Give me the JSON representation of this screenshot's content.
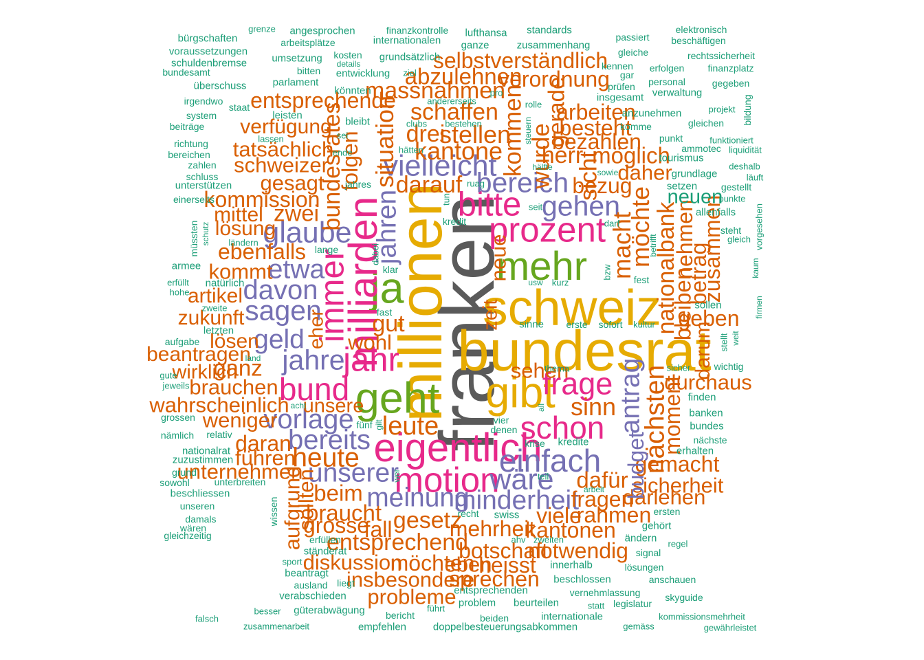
{
  "colors": {
    "c1": "#1b9e77",
    "c2": "#d95f02",
    "c3": "#7570b3",
    "c4": "#e7298a",
    "c5": "#66a61e",
    "c6": "#e6ab02",
    "c7": "#5a5a5a"
  },
  "words": [
    {
      "text": "franken",
      "weight": 1.0,
      "color": "c7",
      "rotate": true
    },
    {
      "text": "bundesrat",
      "weight": 0.7,
      "color": "c6"
    },
    {
      "text": "millionen",
      "weight": 0.75,
      "color": "c6",
      "rotate": true
    },
    {
      "text": "schweiz",
      "weight": 0.6,
      "color": "c6"
    },
    {
      "text": "gibt",
      "weight": 0.5,
      "color": "c6"
    },
    {
      "text": "geht",
      "weight": 0.5,
      "color": "c5"
    },
    {
      "text": "mehr",
      "weight": 0.45,
      "color": "c5"
    },
    {
      "text": "ja",
      "weight": 0.5,
      "color": "c5"
    },
    {
      "text": "eigentlich",
      "weight": 0.45,
      "color": "c4"
    },
    {
      "text": "milliarden",
      "weight": 0.45,
      "color": "c4",
      "rotate": true
    },
    {
      "text": "motion",
      "weight": 0.38,
      "color": "c4"
    },
    {
      "text": "prozent",
      "weight": 0.38,
      "color": "c4"
    },
    {
      "text": "bitte",
      "weight": 0.36,
      "color": "c4"
    },
    {
      "text": "jahr",
      "weight": 0.36,
      "color": "c4"
    },
    {
      "text": "immer",
      "weight": 0.36,
      "color": "c4",
      "rotate": true
    },
    {
      "text": "bund",
      "weight": 0.33,
      "color": "c4"
    },
    {
      "text": "schon",
      "weight": 0.33,
      "color": "c4"
    },
    {
      "text": "frage",
      "weight": 0.32,
      "color": "c4"
    },
    {
      "text": "einfach",
      "weight": 0.33,
      "color": "c3"
    },
    {
      "text": "vielleicht",
      "weight": 0.3,
      "color": "c3"
    },
    {
      "text": "glaube",
      "weight": 0.3,
      "color": "c3"
    },
    {
      "text": "bereich",
      "weight": 0.28,
      "color": "c3"
    },
    {
      "text": "gehen",
      "weight": 0.28,
      "color": "c3"
    },
    {
      "text": "wäre",
      "weight": 0.3,
      "color": "c3"
    },
    {
      "text": "jahre",
      "weight": 0.28,
      "color": "c3"
    },
    {
      "text": "sagen",
      "weight": 0.28,
      "color": "c3"
    },
    {
      "text": "vorlage",
      "weight": 0.27,
      "color": "c3"
    },
    {
      "text": "davon",
      "weight": 0.27,
      "color": "c3"
    },
    {
      "text": "bereits",
      "weight": 0.27,
      "color": "c3"
    },
    {
      "text": "meinung",
      "weight": 0.26,
      "color": "c3"
    },
    {
      "text": "minderheit",
      "weight": 0.26,
      "color": "c3"
    },
    {
      "text": "unserer",
      "weight": 0.25,
      "color": "c3"
    },
    {
      "text": "geld",
      "weight": 0.25,
      "color": "c3"
    },
    {
      "text": "etwa",
      "weight": 0.25,
      "color": "c3"
    },
    {
      "text": "jahren",
      "weight": 0.25,
      "color": "c3",
      "rotate": true
    },
    {
      "text": "antrag",
      "weight": 0.26,
      "color": "c3",
      "rotate": true
    },
    {
      "text": "nächsten",
      "weight": 0.25,
      "color": "c2",
      "rotate": true
    },
    {
      "text": "heute",
      "weight": 0.25,
      "color": "c2"
    },
    {
      "text": "leute",
      "weight": 0.24,
      "color": "c2"
    },
    {
      "text": "sinn",
      "weight": 0.22,
      "color": "c2"
    },
    {
      "text": "situation",
      "weight": 0.22,
      "color": "c2",
      "rotate": true
    },
    {
      "text": "kantone",
      "weight": 0.22,
      "color": "c2"
    },
    {
      "text": "stellen",
      "weight": 0.22,
      "color": "c2"
    },
    {
      "text": "schaffen",
      "weight": 0.2,
      "color": "c2"
    },
    {
      "text": "drei",
      "weight": 0.2,
      "color": "c2"
    },
    {
      "text": "darauf",
      "weight": 0.2,
      "color": "c2"
    },
    {
      "text": "massnahmen",
      "weight": 0.2,
      "color": "c2"
    },
    {
      "text": "abzulehnen",
      "weight": 0.19,
      "color": "c2"
    },
    {
      "text": "verordnung",
      "weight": 0.18,
      "color": "c2"
    },
    {
      "text": "selbstverständlich",
      "weight": 0.18,
      "color": "c2"
    },
    {
      "text": "entsprechende",
      "weight": 0.18,
      "color": "c2"
    },
    {
      "text": "kommen",
      "weight": 0.21,
      "color": "c2",
      "rotate": true
    },
    {
      "text": "wurde",
      "weight": 0.21,
      "color": "c2",
      "rotate": true
    },
    {
      "text": "gerade",
      "weight": 0.19,
      "color": "c2",
      "rotate": true
    },
    {
      "text": "herr",
      "weight": 0.2,
      "color": "c2"
    },
    {
      "text": "sicht",
      "weight": 0.21,
      "color": "c2",
      "rotate": true
    },
    {
      "text": "arbeiten",
      "weight": 0.18,
      "color": "c2"
    },
    {
      "text": "besteht",
      "weight": 0.18,
      "color": "c2"
    },
    {
      "text": "bezahlen",
      "weight": 0.18,
      "color": "c2"
    },
    {
      "text": "möglich",
      "weight": 0.19,
      "color": "c2"
    },
    {
      "text": "bezug",
      "weight": 0.18,
      "color": "c2"
    },
    {
      "text": "daher",
      "weight": 0.17,
      "color": "c2"
    },
    {
      "text": "macht",
      "weight": 0.22,
      "color": "c2",
      "rotate": true
    },
    {
      "text": "möchte",
      "weight": 0.22,
      "color": "c2",
      "rotate": true
    },
    {
      "text": "nationalbank",
      "weight": 0.2,
      "color": "c2",
      "rotate": true
    },
    {
      "text": "bleiben",
      "weight": 0.19,
      "color": "c2",
      "rotate": true
    },
    {
      "text": "nehmen",
      "weight": 0.18,
      "color": "c2",
      "rotate": true
    },
    {
      "text": "zusammen",
      "weight": 0.18,
      "color": "c2",
      "rotate": true
    },
    {
      "text": "betrag",
      "weight": 0.18,
      "color": "c2",
      "rotate": true
    },
    {
      "text": "geben",
      "weight": 0.18,
      "color": "c2"
    },
    {
      "text": "darum",
      "weight": 0.16,
      "color": "c2",
      "rotate": true
    },
    {
      "text": "durchaus",
      "weight": 0.17,
      "color": "c2"
    },
    {
      "text": "moment",
      "weight": 0.18,
      "color": "c2",
      "rotate": true
    },
    {
      "text": "gemacht",
      "weight": 0.18,
      "color": "c2"
    },
    {
      "text": "sicherheit",
      "weight": 0.17,
      "color": "c2"
    },
    {
      "text": "darlehen",
      "weight": 0.17,
      "color": "c2"
    },
    {
      "text": "fragen",
      "weight": 0.18,
      "color": "c2"
    },
    {
      "text": "dafür",
      "weight": 0.19,
      "color": "c2"
    },
    {
      "text": "rahmen",
      "weight": 0.18,
      "color": "c2"
    },
    {
      "text": "budget",
      "weight": 0.18,
      "color": "c3",
      "rotate": true
    },
    {
      "text": "viele",
      "weight": 0.18,
      "color": "c2"
    },
    {
      "text": "kantonen",
      "weight": 0.18,
      "color": "c2"
    },
    {
      "text": "notwendig",
      "weight": 0.18,
      "color": "c2"
    },
    {
      "text": "botschaft",
      "weight": 0.18,
      "color": "c2"
    },
    {
      "text": "heisst",
      "weight": 0.18,
      "color": "c2"
    },
    {
      "text": "sprechen",
      "weight": 0.18,
      "color": "c2"
    },
    {
      "text": "mehrheit",
      "weight": 0.18,
      "color": "c2"
    },
    {
      "text": "gesetz",
      "weight": 0.2,
      "color": "c2"
    },
    {
      "text": "entsprechend",
      "weight": 0.2,
      "color": "c2"
    },
    {
      "text": "möchten",
      "weight": 0.18,
      "color": "c2"
    },
    {
      "text": "eben",
      "weight": 0.17,
      "color": "c2"
    },
    {
      "text": "insbesondere",
      "weight": 0.17,
      "color": "c2"
    },
    {
      "text": "probleme",
      "weight": 0.17,
      "color": "c2"
    },
    {
      "text": "diskussion",
      "weight": 0.17,
      "color": "c2"
    },
    {
      "text": "braucht",
      "weight": 0.19,
      "color": "c2"
    },
    {
      "text": "grosse",
      "weight": 0.18,
      "color": "c2"
    },
    {
      "text": "fall",
      "weight": 0.18,
      "color": "c2"
    },
    {
      "text": "beim",
      "weight": 0.19,
      "color": "c2"
    },
    {
      "text": "sollten",
      "weight": 0.17,
      "color": "c2",
      "rotate": true
    },
    {
      "text": "aufgrund",
      "weight": 0.17,
      "color": "c2",
      "rotate": true
    },
    {
      "text": "führen",
      "weight": 0.17,
      "color": "c2"
    },
    {
      "text": "unternehmen",
      "weight": 0.17,
      "color": "c2"
    },
    {
      "text": "daran",
      "weight": 0.18,
      "color": "c2"
    },
    {
      "text": "weniger",
      "weight": 0.17,
      "color": "c2"
    },
    {
      "text": "wahrscheinlich",
      "weight": 0.17,
      "color": "c2"
    },
    {
      "text": "unsere",
      "weight": 0.15,
      "color": "c2"
    },
    {
      "text": "brauchen",
      "weight": 0.17,
      "color": "c2"
    },
    {
      "text": "wirklich",
      "weight": 0.15,
      "color": "c2"
    },
    {
      "text": "ganz",
      "weight": 0.19,
      "color": "c2"
    },
    {
      "text": "sehen",
      "weight": 0.17,
      "color": "c2"
    },
    {
      "text": "gut",
      "weight": 0.2,
      "color": "c2"
    },
    {
      "text": "wohl",
      "weight": 0.17,
      "color": "c2"
    },
    {
      "text": "eher",
      "weight": 0.15,
      "color": "c2",
      "rotate": true
    },
    {
      "text": "lösen",
      "weight": 0.16,
      "color": "c2"
    },
    {
      "text": "beantragen",
      "weight": 0.16,
      "color": "c2"
    },
    {
      "text": "zukunft",
      "weight": 0.16,
      "color": "c2"
    },
    {
      "text": "artikel",
      "weight": 0.16,
      "color": "c2"
    },
    {
      "text": "kommt",
      "weight": 0.17,
      "color": "c2"
    },
    {
      "text": "ebenfalls",
      "weight": 0.18,
      "color": "c2"
    },
    {
      "text": "zwei",
      "weight": 0.19,
      "color": "c2"
    },
    {
      "text": "mittel",
      "weight": 0.16,
      "color": "c2"
    },
    {
      "text": "lösung",
      "weight": 0.16,
      "color": "c2"
    },
    {
      "text": "kommission",
      "weight": 0.18,
      "color": "c2"
    },
    {
      "text": "gesagt",
      "weight": 0.17,
      "color": "c2"
    },
    {
      "text": "schweizer",
      "weight": 0.17,
      "color": "c2"
    },
    {
      "text": "tatsächlich",
      "weight": 0.17,
      "color": "c2"
    },
    {
      "text": "verfügung",
      "weight": 0.16,
      "color": "c2"
    },
    {
      "text": "bundesrates",
      "weight": 0.2,
      "color": "c2",
      "rotate": true
    },
    {
      "text": "folgen",
      "weight": 0.18,
      "color": "c2",
      "rotate": true
    },
    {
      "text": "neue",
      "weight": 0.17,
      "color": "c2",
      "rotate": true
    },
    {
      "text": "zeit",
      "weight": 0.15,
      "color": "c2",
      "rotate": true
    },
    {
      "text": "neuen",
      "weight": 0.15,
      "color": "c1"
    }
  ],
  "small_words": [
    "bürgschaften",
    "grenze",
    "angesprochen",
    "finanzkontrolle",
    "lufthansa",
    "standards",
    "passiert",
    "elektronisch",
    "voraussetzungen",
    "arbeitsplätze",
    "internationalen",
    "ganze",
    "zusammenhang",
    "beschäftigen",
    "gleiche",
    "rechtssicherheit",
    "schuldenbremse",
    "umsetzung",
    "kosten",
    "details",
    "grundsätzlich",
    "kennen",
    "gar",
    "bundesamt",
    "bitten",
    "entwicklung",
    "ziel",
    "erfolgen",
    "finanzplatz",
    "überschuss",
    "parlament",
    "könnten",
    "pro",
    "prüfen",
    "personal",
    "gegeben",
    "irgendwo",
    "andererseits",
    "rolle",
    "insgesamt",
    "verwaltung",
    "staat",
    "leisten",
    "bestehen",
    "projekt",
    "system",
    "bleibt",
    "clubs",
    "steuern",
    "bildung",
    "beiträge",
    "sei",
    "komme",
    "gleichen",
    "lassen",
    "anzunehmen",
    "richtung",
    "hätten",
    "punkt",
    "funktioniert",
    "bereichen",
    "ende",
    "hälfte",
    "sowie",
    "ammotec",
    "liquidität",
    "zahlen",
    "tourismus",
    "deshalb",
    "schluss",
    "jahres",
    "ruag",
    "grundlage",
    "läuft",
    "unterstützen",
    "setzen",
    "gestellt",
    "einerseits",
    "tun",
    "seit",
    "punkte",
    "kredit",
    "darf",
    "allenfalls",
    "steht",
    "gleich",
    "vorgesehen",
    "müssten",
    "schutz",
    "lange",
    "betrifft",
    "ländern",
    "dabei",
    "armee",
    "klar",
    "bzw",
    "kaum",
    "erfüllt",
    "usw",
    "kurz",
    "fest",
    "firmen",
    "hohe",
    "zweite",
    "natürlich",
    "sollen",
    "sinne",
    "erste",
    "sofort",
    "kultur",
    "letzten",
    "fast",
    "aufgabe",
    "stellt",
    "weit",
    "land",
    "thema",
    "sicher",
    "wichtig",
    "gute",
    "jeweils",
    "acht",
    "all",
    "finden",
    "grossen",
    "fünf",
    "vier",
    "banken",
    "bundes",
    "nämlich",
    "relativ",
    "denen",
    "gilt",
    "krise",
    "kredite",
    "nächste",
    "nationalrat",
    "erhalten",
    "zuzustimmen",
    "grund",
    "wer",
    "teil",
    "sowohl",
    "unterbreiten",
    "beschliessen",
    "arbeit",
    "unseren",
    "wissen",
    "recht",
    "swiss",
    "ersten",
    "damals",
    "wären",
    "gehört",
    "gleichzeitig",
    "erfüllen",
    "ahv",
    "zweiten",
    "ändern",
    "regel",
    "ständerat",
    "sport",
    "signal",
    "beantragt",
    "innerhalb",
    "lösungen",
    "ausland",
    "liegt",
    "anschauen",
    "verabschieden",
    "beschlossen",
    "vernehmlassung",
    "skyguide",
    "bericht",
    "entsprechenden",
    "problem",
    "beurteilen",
    "statt",
    "legislatur",
    "besser",
    "güterabwägung",
    "führt",
    "beiden",
    "internationale",
    "kommissionsmehrheit",
    "falsch",
    "zusammenarbeit",
    "empfehlen",
    "doppelbesteuerungsabkommen",
    "gemäss",
    "gewährleistet"
  ]
}
